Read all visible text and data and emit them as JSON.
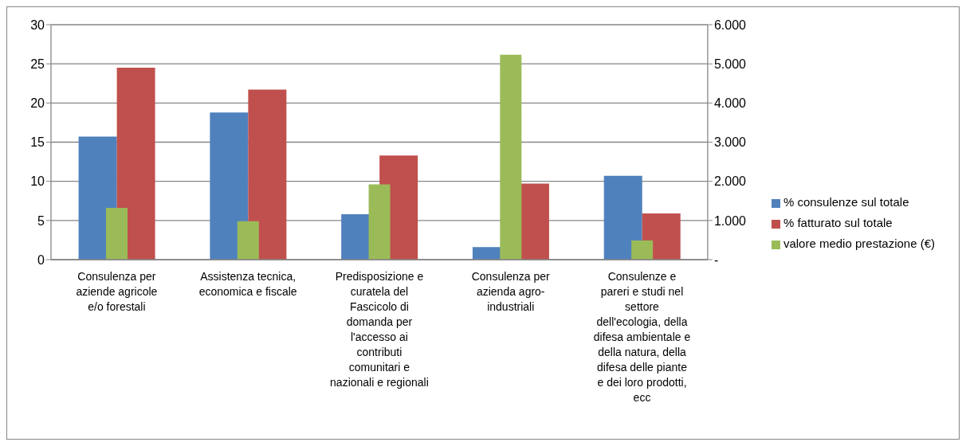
{
  "chart_data": {
    "type": "bar",
    "categories": [
      "Consulenza per aziende agricole e/o forestali",
      "Assistenza tecnica, economica e fiscale",
      "Predisposizione e curatela del Fascicolo di domanda per l'accesso ai contributi comunitari e nazionali e regionali",
      "Consulenza per azienda agro-industriali",
      "Consulenze e pareri e studi nel settore dell'ecologia, della difesa ambientale e della natura, della difesa delle piante e dei loro prodotti, ecc"
    ],
    "series": [
      {
        "name": "% consulenze sul totale",
        "color": "#4f81bd",
        "values": [
          15.7,
          18.8,
          5.8,
          1.6,
          10.7
        ]
      },
      {
        "name": "% fatturato sul totale",
        "color": "#c0504d",
        "values": [
          24.5,
          21.7,
          13.3,
          9.7,
          5.9
        ]
      },
      {
        "name": "valore medio prestazione (€)",
        "color": "#9bbb59",
        "values": [
          1320,
          980,
          1920,
          5230,
          490
        ],
        "axis": "y2"
      }
    ],
    "ylim": [
      0,
      30
    ],
    "yticks": [
      0,
      5,
      10,
      15,
      20,
      25,
      30
    ],
    "y2lim": [
      0,
      6000
    ],
    "y2ticks": [
      {
        "value": 0,
        "label": "-"
      },
      {
        "value": 1000,
        "label": "1.000"
      },
      {
        "value": 2000,
        "label": "2.000"
      },
      {
        "value": 3000,
        "label": "3.000"
      },
      {
        "value": 4000,
        "label": "4.000"
      },
      {
        "value": 5000,
        "label": "5.000"
      },
      {
        "value": 6000,
        "label": "6.000"
      }
    ],
    "grid": "y",
    "legend": "right"
  }
}
